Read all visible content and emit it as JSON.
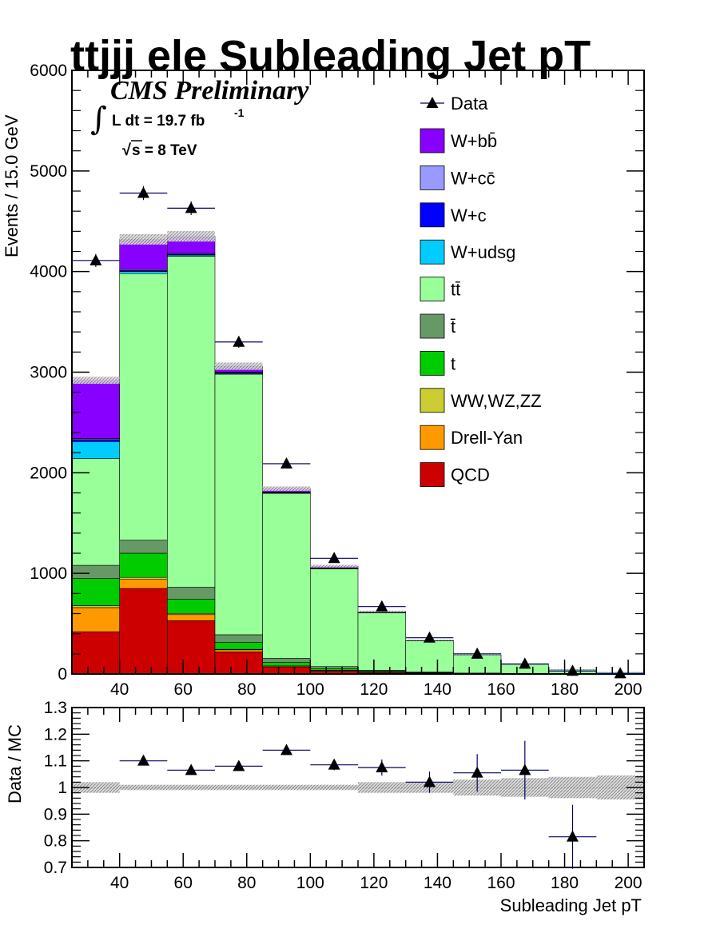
{
  "chart_data": [
    {
      "type": "bar",
      "subtype": "stacked-histogram",
      "title": "ttjjj ele Subleading Jet pT",
      "annotations": {
        "experiment": "CMS Preliminary",
        "lumi_prefix": "L dt = 19.7 fb",
        "lumi_exponent": "-1",
        "energy": "s = 8 TeV"
      },
      "xlabel": "",
      "ylabel": "Events / 15.0 GeV",
      "xlim": [
        25,
        205
      ],
      "ylim": [
        0,
        6000
      ],
      "x_ticks": [
        "40",
        "60",
        "80",
        "100",
        "120",
        "140",
        "160",
        "180",
        "200"
      ],
      "y_ticks": [
        "0",
        "1000",
        "2000",
        "3000",
        "4000",
        "5000",
        "6000"
      ],
      "bin_edges": [
        25,
        40,
        55,
        70,
        85,
        100,
        115,
        130,
        145,
        160,
        175,
        190,
        205
      ],
      "legend_position": "top-right",
      "stack": [
        {
          "name": "QCD",
          "color": "#cc0000",
          "values": [
            420,
            850,
            530,
            220,
            70,
            30,
            15,
            8,
            4,
            2,
            1,
            1
          ]
        },
        {
          "name": "Drell-Yan",
          "color": "#ff9900",
          "values": [
            240,
            90,
            60,
            20,
            8,
            5,
            3,
            2,
            1,
            1,
            0,
            0
          ]
        },
        {
          "name": "WW,WZ,ZZ",
          "color": "#cccc33",
          "values": [
            20,
            20,
            12,
            5,
            2,
            1,
            1,
            0,
            0,
            0,
            0,
            0
          ]
        },
        {
          "name": "t",
          "color": "#00cc00",
          "values": [
            270,
            240,
            140,
            70,
            35,
            18,
            8,
            4,
            2,
            1,
            1,
            0
          ]
        },
        {
          "name": "t̄",
          "color": "#669966",
          "values": [
            130,
            130,
            120,
            75,
            40,
            20,
            10,
            5,
            2,
            1,
            1,
            0
          ]
        },
        {
          "name": "tt̄",
          "color": "#99ff99",
          "values": [
            1060,
            2650,
            3290,
            2590,
            1640,
            970,
            570,
            310,
            180,
            90,
            40,
            16
          ]
        },
        {
          "name": "W+udsg",
          "color": "#00ccff",
          "values": [
            170,
            20,
            12,
            8,
            5,
            3,
            2,
            1,
            1,
            0,
            0,
            0
          ]
        },
        {
          "name": "W+c",
          "color": "#0000ff",
          "values": [
            20,
            10,
            8,
            6,
            4,
            3,
            2,
            1,
            0,
            0,
            0,
            0
          ]
        },
        {
          "name": "W+cc̄",
          "color": "#9999ff",
          "values": [
            10,
            10,
            8,
            5,
            3,
            2,
            1,
            1,
            0,
            0,
            0,
            0
          ]
        },
        {
          "name": "W+bb̄",
          "color": "#8800ff",
          "values": [
            580,
            300,
            170,
            60,
            35,
            20,
            10,
            4,
            2,
            1,
            0,
            0
          ]
        }
      ],
      "data_series": {
        "name": "Data",
        "x": [
          32.5,
          47.5,
          62.5,
          77.5,
          92.5,
          107.5,
          122.5,
          137.5,
          152.5,
          167.5,
          182.5,
          197.5
        ],
        "values": [
          4110,
          4780,
          4630,
          3300,
          2090,
          1150,
          670,
          360,
          200,
          100,
          30,
          5
        ]
      }
    },
    {
      "type": "scatter",
      "subtype": "ratio",
      "xlabel": "Subleading Jet pT",
      "ylabel": "Data / MC",
      "xlim": [
        25,
        205
      ],
      "ylim": [
        0.7,
        1.3
      ],
      "x_ticks": [
        "40",
        "60",
        "80",
        "100",
        "120",
        "140",
        "160",
        "180",
        "200"
      ],
      "y_ticks": [
        "0.7",
        "0.8",
        "0.9",
        "1",
        "1.1",
        "1.2",
        "1.3"
      ],
      "points": {
        "x": [
          47.5,
          62.5,
          77.5,
          92.5,
          107.5,
          122.5,
          137.5,
          152.5,
          167.5,
          182.5
        ],
        "y": [
          1.1,
          1.065,
          1.08,
          1.14,
          1.085,
          1.075,
          1.02,
          1.055,
          1.065,
          0.815
        ],
        "yerr": [
          0.01,
          0.01,
          0.01,
          0.015,
          0.02,
          0.03,
          0.04,
          0.07,
          0.11,
          0.12
        ]
      },
      "band_halfwidth": [
        0.02,
        0.01,
        0.01,
        0.01,
        0.01,
        0.01,
        0.02,
        0.02,
        0.03,
        0.035,
        0.04,
        0.045
      ]
    }
  ]
}
